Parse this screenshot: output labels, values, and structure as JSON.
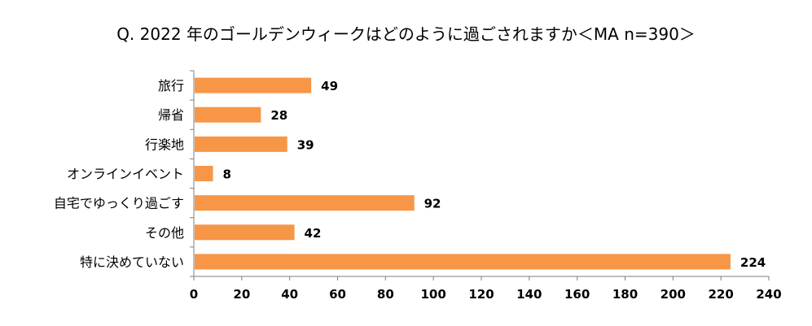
{
  "chart_data": {
    "type": "bar",
    "orientation": "horizontal",
    "title": "Q. 2022 年のゴールデンウィークはどのように過ごされますか＜MA n=390＞",
    "categories": [
      "旅行",
      "帰省",
      "行楽地",
      "オンラインイベント",
      "自宅でゆっくり過ごす",
      "その他",
      "特に決めていない"
    ],
    "values": [
      49,
      28,
      39,
      8,
      92,
      42,
      224
    ],
    "xlim": [
      0,
      240
    ],
    "xticks": [
      0,
      20,
      40,
      60,
      80,
      100,
      120,
      140,
      160,
      180,
      200,
      220,
      240
    ],
    "bar_color": "#F79646",
    "grid": false,
    "legend": "none"
  }
}
